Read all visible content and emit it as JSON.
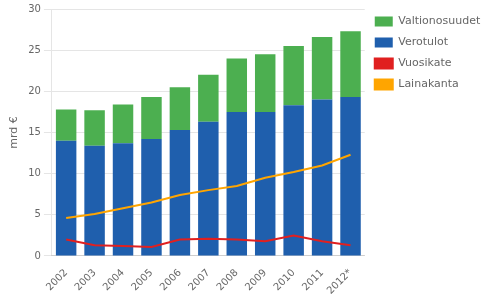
{
  "chart_data": {
    "type": "bar",
    "categories": [
      "2002",
      "2003",
      "2004",
      "2005",
      "2006",
      "2007",
      "2008",
      "2009",
      "2010",
      "2011",
      "2012*"
    ],
    "series": [
      {
        "name": "Verotulot",
        "type": "bar",
        "color": "#1F5FAD",
        "values": [
          14.0,
          13.4,
          13.7,
          14.2,
          15.3,
          16.3,
          17.5,
          17.5,
          18.3,
          19.0,
          19.3
        ]
      },
      {
        "name": "Valtionosuudet",
        "type": "bar",
        "color": "#4CAF50",
        "values": [
          3.8,
          4.3,
          4.7,
          5.1,
          5.2,
          5.7,
          6.5,
          7.0,
          7.2,
          7.6,
          8.0
        ]
      },
      {
        "name": "Vuosikate",
        "type": "line",
        "color": "#E02020",
        "values": [
          2.0,
          1.3,
          1.2,
          1.1,
          2.0,
          2.1,
          2.0,
          1.8,
          2.5,
          1.8,
          1.3
        ]
      },
      {
        "name": "Lainakanta",
        "type": "line",
        "color": "#FFA500",
        "values": [
          4.6,
          5.1,
          5.8,
          6.5,
          7.4,
          8.0,
          8.5,
          9.5,
          10.2,
          11.0,
          12.3
        ]
      }
    ],
    "stacked": true,
    "ylabel": "mrd €",
    "ylim": [
      0,
      30
    ],
    "yticks": [
      0,
      5,
      10,
      15,
      20,
      25,
      30
    ],
    "grid": "y",
    "legend": "right"
  }
}
